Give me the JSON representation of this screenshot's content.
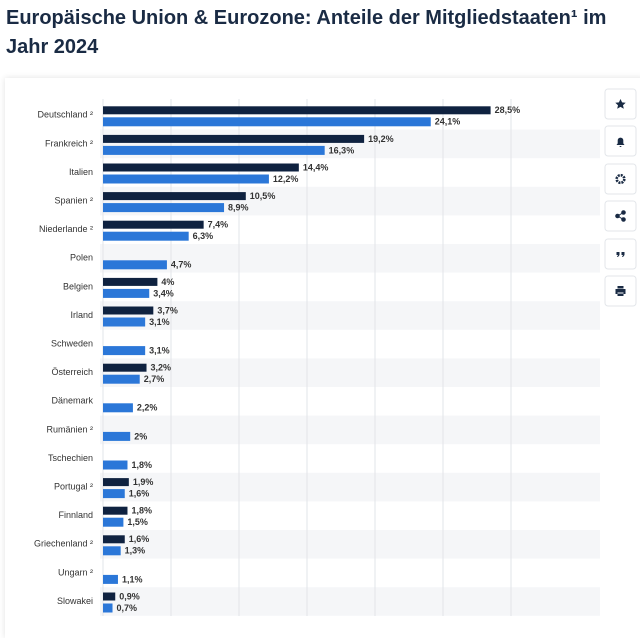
{
  "chart_data": {
    "type": "hbar",
    "title": "Europäische Union & Eurozone: Anteile der Mitgliedstaaten¹ im Jahr 2024",
    "categories": [
      "Deutschland ²",
      "Frankreich ²",
      "Italien",
      "Spanien ²",
      "Niederlande ²",
      "Polen",
      "Belgien",
      "Irland",
      "Schweden",
      "Österreich",
      "Dänemark",
      "Rumänien ²",
      "Tschechien",
      "Portugal ²",
      "Finnland",
      "Griechenland ²",
      "Ungarn ²",
      "Slowakei"
    ],
    "series": [
      {
        "color": "#0f2240",
        "values": [
          28.5,
          19.2,
          14.4,
          10.5,
          7.4,
          null,
          4,
          3.7,
          null,
          3.2,
          null,
          null,
          null,
          1.9,
          1.8,
          1.6,
          null,
          0.9
        ],
        "value_labels": [
          "28,5%",
          "19,2%",
          "14,4%",
          "10,5%",
          "7,4%",
          null,
          "4%",
          "3,7%",
          null,
          "3,2%",
          null,
          null,
          null,
          "1,9%",
          "1,8%",
          "1,6%",
          null,
          "0,9%"
        ]
      },
      {
        "color": "#2b77d8",
        "values": [
          24.1,
          16.3,
          12.2,
          8.9,
          6.3,
          4.7,
          3.4,
          3.1,
          3.1,
          2.7,
          2.2,
          2,
          1.8,
          1.6,
          1.5,
          1.3,
          1.1,
          0.7
        ],
        "value_labels": [
          "24,1%",
          "16,3%",
          "12,2%",
          "8,9%",
          "6,3%",
          "4,7%",
          "3,4%",
          "3,1%",
          "3,1%",
          "2,7%",
          "2,2%",
          "2%",
          "1,8%",
          "1,6%",
          "1,5%",
          "1,3%",
          "1,1%",
          "0,7%"
        ]
      }
    ],
    "xlim": [
      0,
      30
    ],
    "xticks": [
      0,
      5,
      10,
      15,
      20,
      25,
      30
    ],
    "grid": true
  }
}
